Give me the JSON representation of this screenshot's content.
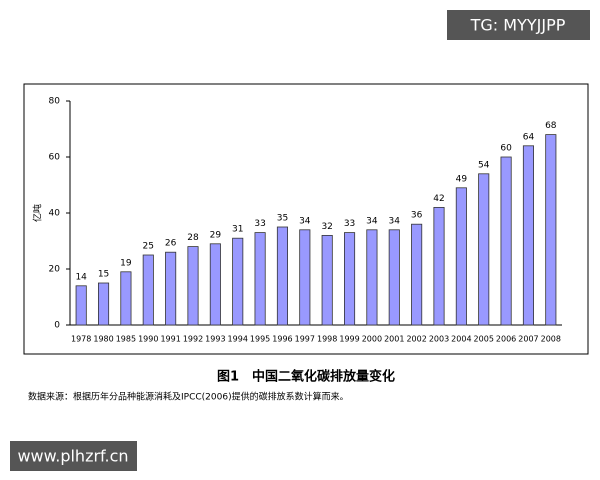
{
  "chart_data": {
    "type": "bar",
    "title": "图1　中国二氧化碳排放量变化",
    "source": "数据来源：根据历年分品种能源消耗及IPCC(2006)提供的碳排放系数计算而来。",
    "y_label": "亿吨",
    "categories": [
      "1978",
      "1980",
      "1985",
      "1990",
      "1991",
      "1992",
      "1993",
      "1994",
      "1995",
      "1996",
      "1997",
      "1998",
      "1999",
      "2000",
      "2001",
      "2002",
      "2003",
      "2004",
      "2005",
      "2006",
      "2007",
      "2008"
    ],
    "values": [
      14,
      15,
      19,
      25,
      26,
      28,
      29,
      31,
      33,
      35,
      34,
      32,
      33,
      34,
      34,
      36,
      42,
      49,
      54,
      60,
      64,
      68
    ],
    "color": "#9999ff",
    "ylim": [
      0,
      80
    ],
    "yticks": [
      0,
      20,
      40,
      60,
      80
    ],
    "grid": false
  },
  "watermarks": [
    "TG: MYYJJPP",
    "www.plhzrf.cn"
  ]
}
